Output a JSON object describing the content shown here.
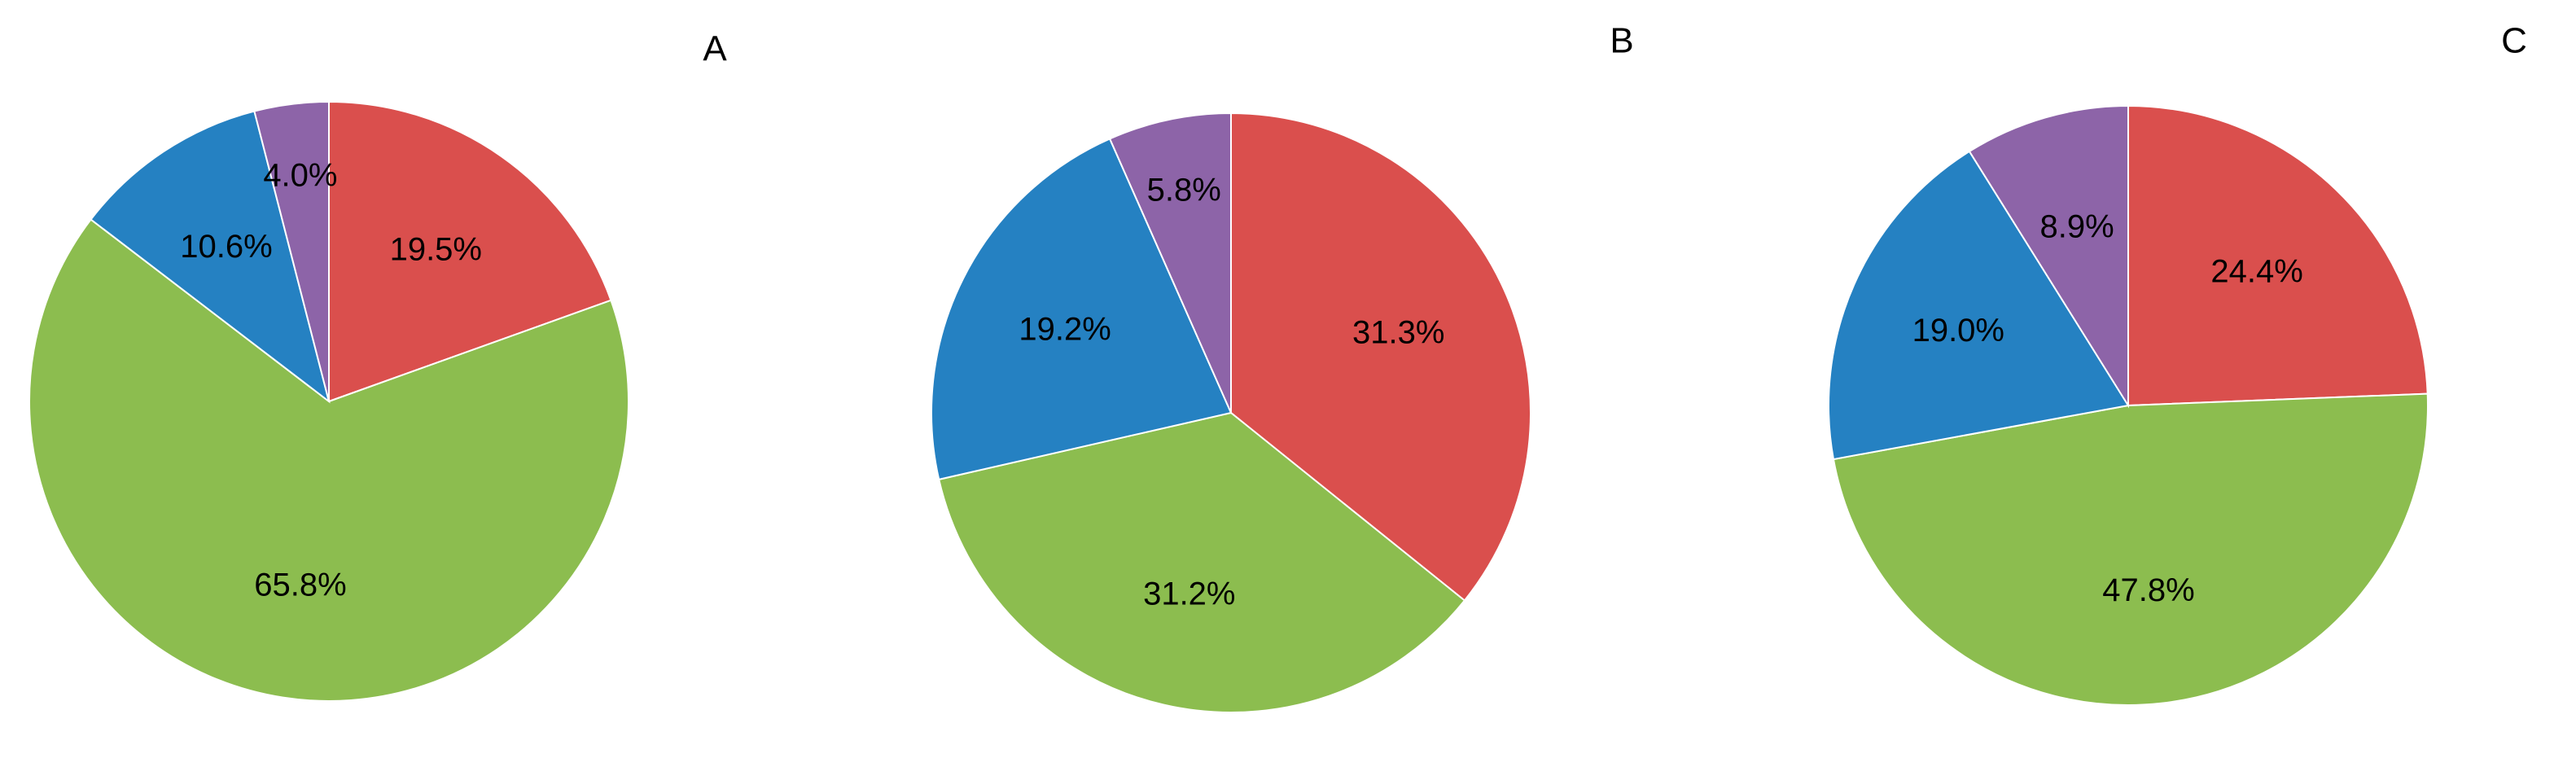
{
  "chart_data": [
    {
      "type": "pie",
      "panel_label": "A",
      "slices": [
        {
          "label": "19.5%",
          "value": 19.5,
          "color": "#DA4F4D"
        },
        {
          "label": "65.8%",
          "value": 65.8,
          "color": "#8CBD4F"
        },
        {
          "label": "10.6%",
          "value": 10.6,
          "color": "#2581C2"
        },
        {
          "label": "4.0%",
          "value": 4.0,
          "color": "#8D64A8"
        }
      ]
    },
    {
      "type": "pie",
      "panel_label": "B",
      "slices": [
        {
          "label": "31.3%",
          "value": 31.3,
          "color": "#DA4F4D"
        },
        {
          "label": "31.2%",
          "value": 31.2,
          "color": "#8CBD4F"
        },
        {
          "label": "19.2%",
          "value": 19.2,
          "color": "#2581C2"
        },
        {
          "label": "5.8%",
          "value": 5.8,
          "color": "#8D64A8"
        }
      ]
    },
    {
      "type": "pie",
      "panel_label": "C",
      "slices": [
        {
          "label": "24.4%",
          "value": 24.4,
          "color": "#DA4F4D"
        },
        {
          "label": "47.8%",
          "value": 47.8,
          "color": "#8CBD4F"
        },
        {
          "label": "19.0%",
          "value": 19.0,
          "color": "#2581C2"
        },
        {
          "label": "8.9%",
          "value": 8.9,
          "color": "#8D64A8"
        }
      ]
    }
  ]
}
